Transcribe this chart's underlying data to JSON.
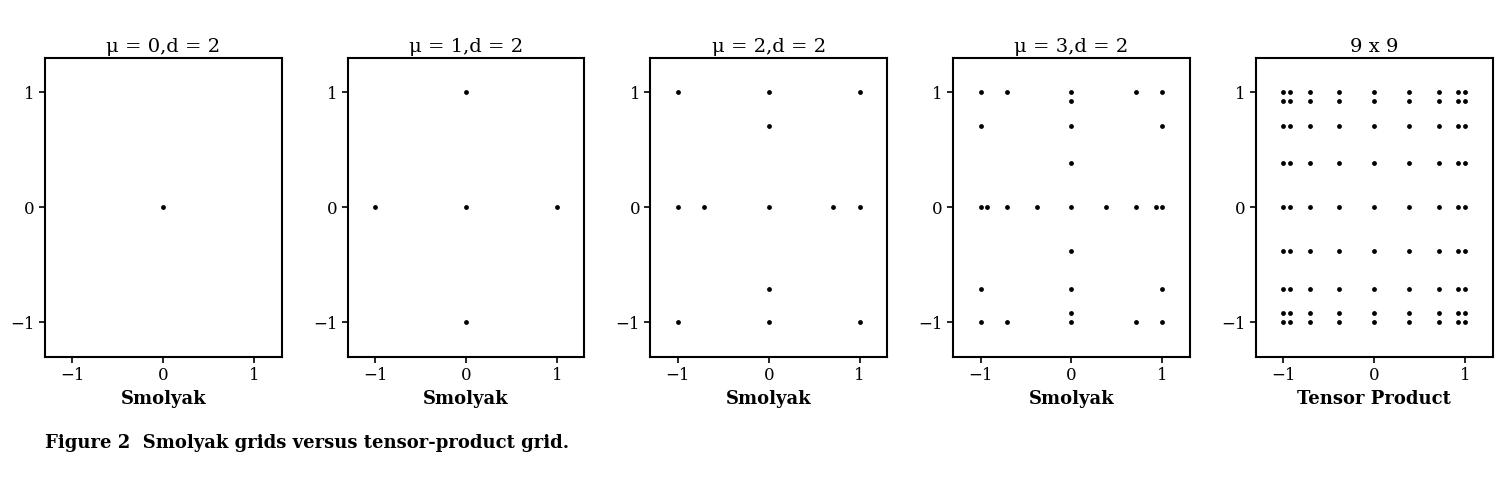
{
  "titles": [
    "μ = 0,d = 2",
    "μ = 1,d = 2",
    "μ = 2,d = 2",
    "μ = 3,d = 2",
    "9 x 9"
  ],
  "xlabels": [
    "Smolyak",
    "Smolyak",
    "Smolyak",
    "Smolyak",
    "Tensor Product"
  ],
  "caption": "Figure 2  Smolyak grids versus tensor-product grid.",
  "dot_color": "#000000",
  "dot_size": 12,
  "background_color": "#ffffff",
  "xlim": [
    -1.3,
    1.3
  ],
  "ylim": [
    -1.3,
    1.3
  ],
  "xticks": [
    -1,
    0,
    1
  ],
  "yticks": [
    -1,
    0,
    1
  ],
  "figsize": [
    15.0,
    4.82
  ],
  "dpi": 100,
  "title_fontsize": 14,
  "label_fontsize": 13,
  "tick_fontsize": 12,
  "caption_fontsize": 13
}
